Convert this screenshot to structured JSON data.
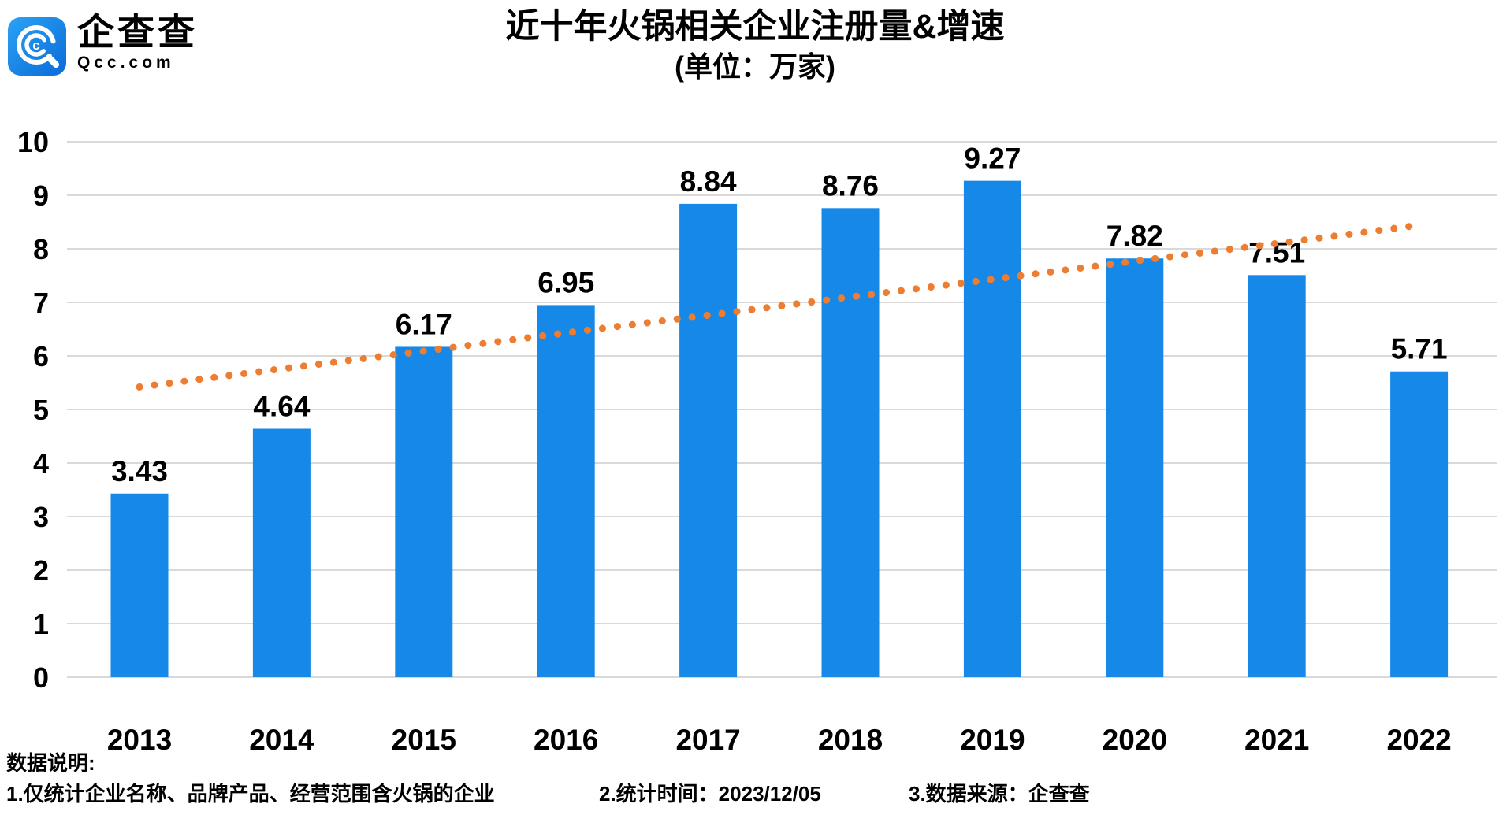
{
  "logo": {
    "name": "企查查",
    "domain": "Qcc.com"
  },
  "header": {
    "title": "近十年火锅相关企业注册量&增速",
    "subtitle": "(单位：万家)"
  },
  "chart_data": {
    "type": "bar",
    "title": "近十年火锅相关企业注册量&增速",
    "subtitle": "(单位：万家)",
    "unit": "万家",
    "categories": [
      "2013",
      "2014",
      "2015",
      "2016",
      "2017",
      "2018",
      "2019",
      "2020",
      "2021",
      "2022"
    ],
    "series": [
      {
        "name": "注册量",
        "type": "bar",
        "values": [
          3.43,
          4.64,
          6.17,
          6.95,
          8.84,
          8.76,
          9.27,
          7.82,
          7.51,
          5.71
        ],
        "data_labels": [
          "3.43",
          "4.64",
          "6.17",
          "6.95",
          "8.84",
          "8.76",
          "9.27",
          "7.82",
          "7.51",
          "5.71"
        ],
        "color": "#1689E8"
      },
      {
        "name": "增速趋势线",
        "type": "dotted-line",
        "values": [
          5.42,
          5.76,
          6.09,
          6.43,
          6.76,
          7.1,
          7.43,
          7.77,
          8.1,
          8.44
        ],
        "color": "#ED7D31"
      }
    ],
    "ylim": [
      0,
      10
    ],
    "ytick_step": 1,
    "yticks": [
      "0",
      "1",
      "2",
      "3",
      "4",
      "5",
      "6",
      "7",
      "8",
      "9",
      "10"
    ],
    "grid": true,
    "legend": false,
    "xlabel": "",
    "ylabel": ""
  },
  "colors": {
    "bar": "#1689E8",
    "trend": "#ED7D31",
    "grid": "#D9D9D9",
    "text": "#000000",
    "logo_blue_light": "#2BA2F5",
    "logo_blue_dark": "#0B6BD8"
  },
  "notes": {
    "heading": "数据说明:",
    "items": [
      "1.仅统计企业名称、品牌产品、经营范围含火锅的企业",
      "2.统计时间：2023/12/05",
      "3.数据来源：企查查"
    ]
  }
}
